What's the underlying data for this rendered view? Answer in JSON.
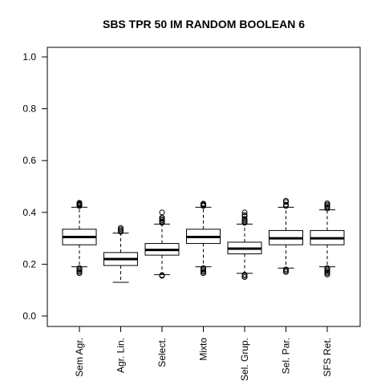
{
  "chart_data": {
    "type": "boxplot",
    "title": "SBS TPR 50 IM RANDOM BOOLEAN 6",
    "xlabel": "",
    "ylabel": "",
    "ylim": [
      0,
      1
    ],
    "yticks": [
      "0.0",
      "0.2",
      "0.4",
      "0.6",
      "0.8",
      "1.0"
    ],
    "categories": [
      "Sem Agr.",
      "Agr. Lin.",
      "Select.",
      "Mixto",
      "Sel. Grup.",
      "Sel. Par.",
      "SFS Ret."
    ],
    "boxes": [
      {
        "whisker_low": 0.19,
        "q1": 0.275,
        "median": 0.305,
        "q3": 0.335,
        "whisker_high": 0.42,
        "outliers": [
          0.165,
          0.17,
          0.175,
          0.18,
          0.185,
          0.425,
          0.428,
          0.431,
          0.434,
          0.437
        ]
      },
      {
        "whisker_low": 0.13,
        "q1": 0.195,
        "median": 0.22,
        "q3": 0.245,
        "whisker_high": 0.32,
        "outliers": [
          0.325,
          0.33,
          0.335,
          0.34
        ]
      },
      {
        "whisker_low": 0.16,
        "q1": 0.235,
        "median": 0.255,
        "q3": 0.28,
        "whisker_high": 0.355,
        "outliers": [
          0.155,
          0.158,
          0.36,
          0.365,
          0.37,
          0.375,
          0.38,
          0.4
        ]
      },
      {
        "whisker_low": 0.19,
        "q1": 0.28,
        "median": 0.305,
        "q3": 0.335,
        "whisker_high": 0.42,
        "outliers": [
          0.165,
          0.17,
          0.175,
          0.18,
          0.185,
          0.425,
          0.428,
          0.431,
          0.434
        ]
      },
      {
        "whisker_low": 0.165,
        "q1": 0.24,
        "median": 0.26,
        "q3": 0.285,
        "whisker_high": 0.355,
        "outliers": [
          0.15,
          0.155,
          0.16,
          0.36,
          0.365,
          0.37,
          0.375,
          0.385,
          0.39,
          0.4
        ]
      },
      {
        "whisker_low": 0.185,
        "q1": 0.275,
        "median": 0.3,
        "q3": 0.33,
        "whisker_high": 0.42,
        "outliers": [
          0.17,
          0.175,
          0.18,
          0.425,
          0.43,
          0.44,
          0.445
        ]
      },
      {
        "whisker_low": 0.19,
        "q1": 0.275,
        "median": 0.3,
        "q3": 0.33,
        "whisker_high": 0.41,
        "outliers": [
          0.16,
          0.165,
          0.17,
          0.175,
          0.18,
          0.185,
          0.415,
          0.42,
          0.425,
          0.43,
          0.435
        ]
      }
    ]
  }
}
